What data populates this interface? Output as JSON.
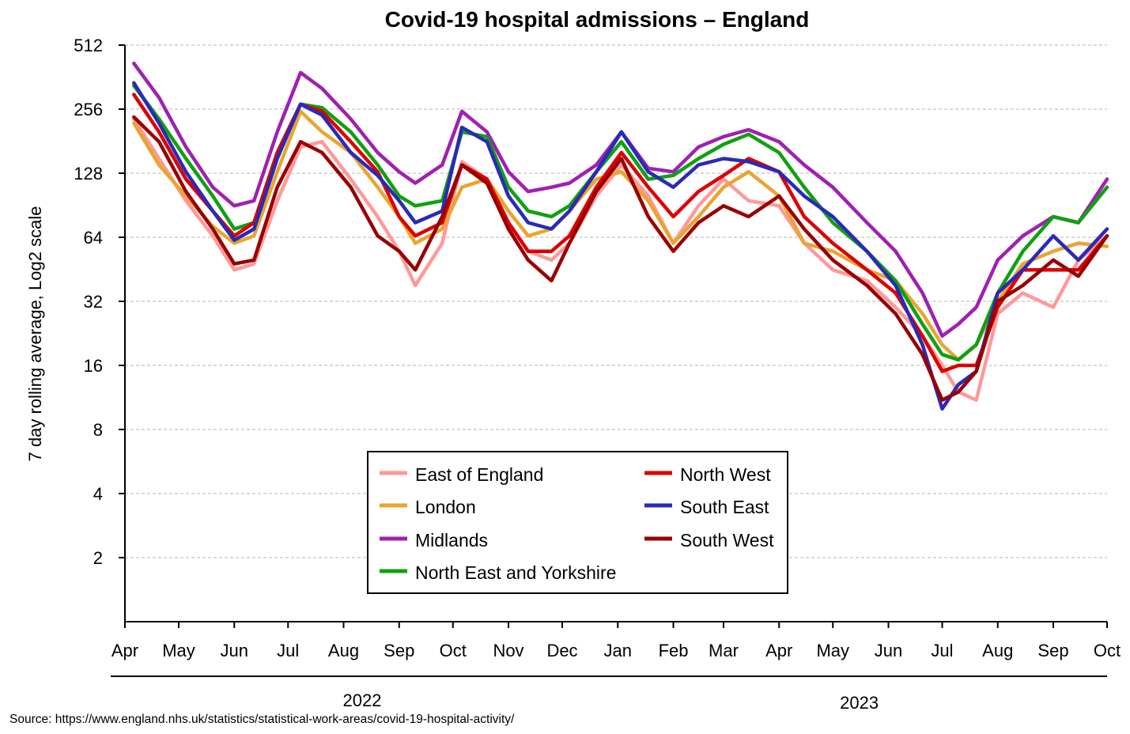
{
  "chart_data": {
    "type": "line",
    "title": "Covid-19 hospital admissions – England",
    "xlabel": "",
    "ylabel": "7 day rolling average, Log2 scale",
    "y_scale": "log2",
    "ylim": [
      1,
      512
    ],
    "y_ticks": [
      512,
      256,
      128,
      64,
      32,
      16,
      8,
      4,
      2
    ],
    "x_range": [
      "2022-04-01",
      "2023-10-01"
    ],
    "x_ticks": [
      {
        "date": "2022-04-01",
        "label": "Apr"
      },
      {
        "date": "2022-05-01",
        "label": "May"
      },
      {
        "date": "2022-06-01",
        "label": "Jun"
      },
      {
        "date": "2022-07-01",
        "label": "Jul"
      },
      {
        "date": "2022-08-01",
        "label": "Aug"
      },
      {
        "date": "2022-09-01",
        "label": "Sep"
      },
      {
        "date": "2022-10-01",
        "label": "Oct"
      },
      {
        "date": "2022-11-01",
        "label": "Nov"
      },
      {
        "date": "2022-12-01",
        "label": "Dec"
      },
      {
        "date": "2023-01-01",
        "label": "Jan"
      },
      {
        "date": "2023-02-01",
        "label": "Feb"
      },
      {
        "date": "2023-03-01",
        "label": "Mar"
      },
      {
        "date": "2023-04-01",
        "label": "Apr"
      },
      {
        "date": "2023-05-01",
        "label": "May"
      },
      {
        "date": "2023-06-01",
        "label": "Jun"
      },
      {
        "date": "2023-07-01",
        "label": "Jul"
      },
      {
        "date": "2023-08-01",
        "label": "Aug"
      },
      {
        "date": "2023-09-01",
        "label": "Sep"
      },
      {
        "date": "2023-10-01",
        "label": "Oct"
      }
    ],
    "year_labels": [
      {
        "label": "2022",
        "from": "2022-04-01",
        "to": "2022-12-31"
      },
      {
        "label": "2023",
        "from": "2023-01-01",
        "to": "2023-10-01"
      }
    ],
    "grid": "horizontal dashed",
    "legend_position": "lower-center",
    "series": [
      {
        "name": "East of England",
        "color": "#ff9999",
        "x": [
          "2022-04-06",
          "2022-04-20",
          "2022-05-05",
          "2022-05-20",
          "2022-06-01",
          "2022-06-12",
          "2022-06-25",
          "2022-07-08",
          "2022-07-20",
          "2022-08-05",
          "2022-08-20",
          "2022-09-01",
          "2022-09-10",
          "2022-09-25",
          "2022-10-06",
          "2022-10-20",
          "2022-11-01",
          "2022-11-12",
          "2022-11-25",
          "2022-12-05",
          "2022-12-20",
          "2023-01-03",
          "2023-01-18",
          "2023-02-01",
          "2023-02-15",
          "2023-03-01",
          "2023-03-15",
          "2023-04-01",
          "2023-04-15",
          "2023-05-01",
          "2023-05-20",
          "2023-06-05",
          "2023-06-20",
          "2023-07-01",
          "2023-07-10",
          "2023-07-20",
          "2023-08-01",
          "2023-08-15",
          "2023-09-01",
          "2023-09-15",
          "2023-10-01"
        ],
        "values": [
          230,
          150,
          95,
          65,
          45,
          48,
          95,
          170,
          180,
          120,
          80,
          55,
          38,
          60,
          145,
          120,
          75,
          55,
          50,
          60,
          100,
          140,
          100,
          60,
          90,
          120,
          95,
          90,
          60,
          45,
          40,
          30,
          22,
          16,
          12,
          11,
          28,
          35,
          30,
          50,
          65
        ]
      },
      {
        "name": "London",
        "color": "#e8a530",
        "x": [
          "2022-04-06",
          "2022-04-20",
          "2022-05-05",
          "2022-05-20",
          "2022-06-01",
          "2022-06-12",
          "2022-06-25",
          "2022-07-08",
          "2022-07-20",
          "2022-08-05",
          "2022-08-20",
          "2022-09-01",
          "2022-09-10",
          "2022-09-25",
          "2022-10-06",
          "2022-10-20",
          "2022-11-01",
          "2022-11-12",
          "2022-11-25",
          "2022-12-05",
          "2022-12-20",
          "2023-01-03",
          "2023-01-18",
          "2023-02-01",
          "2023-02-15",
          "2023-03-01",
          "2023-03-15",
          "2023-04-01",
          "2023-04-15",
          "2023-05-01",
          "2023-05-20",
          "2023-06-05",
          "2023-06-20",
          "2023-07-01",
          "2023-07-10",
          "2023-07-20",
          "2023-08-01",
          "2023-08-15",
          "2023-09-01",
          "2023-09-15",
          "2023-10-01"
        ],
        "values": [
          220,
          140,
          100,
          72,
          60,
          65,
          130,
          250,
          200,
          160,
          110,
          80,
          60,
          70,
          110,
          120,
          85,
          65,
          70,
          85,
          120,
          130,
          95,
          60,
          80,
          110,
          130,
          100,
          60,
          55,
          45,
          40,
          28,
          20,
          17,
          20,
          32,
          48,
          55,
          60,
          58
        ]
      },
      {
        "name": "Midlands",
        "color": "#a020b0",
        "x": [
          "2022-04-06",
          "2022-04-20",
          "2022-05-05",
          "2022-05-20",
          "2022-06-01",
          "2022-06-12",
          "2022-06-25",
          "2022-07-08",
          "2022-07-20",
          "2022-08-05",
          "2022-08-20",
          "2022-09-01",
          "2022-09-10",
          "2022-09-25",
          "2022-10-06",
          "2022-10-20",
          "2022-11-01",
          "2022-11-12",
          "2022-11-25",
          "2022-12-05",
          "2022-12-20",
          "2023-01-03",
          "2023-01-18",
          "2023-02-01",
          "2023-02-15",
          "2023-03-01",
          "2023-03-15",
          "2023-04-01",
          "2023-04-15",
          "2023-05-01",
          "2023-05-20",
          "2023-06-05",
          "2023-06-20",
          "2023-07-01",
          "2023-07-10",
          "2023-07-20",
          "2023-08-01",
          "2023-08-15",
          "2023-09-01",
          "2023-09-15",
          "2023-10-01"
        ],
        "values": [
          420,
          290,
          170,
          110,
          90,
          95,
          200,
          380,
          320,
          230,
          160,
          130,
          115,
          140,
          250,
          200,
          130,
          105,
          110,
          115,
          140,
          200,
          135,
          130,
          170,
          190,
          205,
          180,
          140,
          110,
          75,
          55,
          35,
          22,
          25,
          30,
          50,
          65,
          80,
          75,
          120
        ]
      },
      {
        "name": "North East and Yorkshire",
        "color": "#10a010",
        "x": [
          "2022-04-06",
          "2022-04-20",
          "2022-05-05",
          "2022-05-20",
          "2022-06-01",
          "2022-06-12",
          "2022-06-25",
          "2022-07-08",
          "2022-07-20",
          "2022-08-05",
          "2022-08-20",
          "2022-09-01",
          "2022-09-10",
          "2022-09-25",
          "2022-10-06",
          "2022-10-20",
          "2022-11-01",
          "2022-11-12",
          "2022-11-25",
          "2022-12-05",
          "2022-12-20",
          "2023-01-03",
          "2023-01-18",
          "2023-02-01",
          "2023-02-15",
          "2023-03-01",
          "2023-03-15",
          "2023-04-01",
          "2023-04-15",
          "2023-05-01",
          "2023-05-20",
          "2023-06-05",
          "2023-06-20",
          "2023-07-01",
          "2023-07-10",
          "2023-07-20",
          "2023-08-01",
          "2023-08-15",
          "2023-09-01",
          "2023-09-15",
          "2023-10-01"
        ],
        "values": [
          330,
          230,
          150,
          100,
          70,
          75,
          160,
          270,
          260,
          200,
          140,
          100,
          90,
          95,
          200,
          190,
          110,
          85,
          80,
          90,
          130,
          180,
          120,
          125,
          150,
          175,
          195,
          160,
          110,
          75,
          55,
          40,
          25,
          18,
          17,
          20,
          35,
          55,
          80,
          75,
          110
        ]
      },
      {
        "name": "North West",
        "color": "#dd0000",
        "x": [
          "2022-04-06",
          "2022-04-20",
          "2022-05-05",
          "2022-05-20",
          "2022-06-01",
          "2022-06-12",
          "2022-06-25",
          "2022-07-08",
          "2022-07-20",
          "2022-08-05",
          "2022-08-20",
          "2022-09-01",
          "2022-09-10",
          "2022-09-25",
          "2022-10-06",
          "2022-10-20",
          "2022-11-01",
          "2022-11-12",
          "2022-11-25",
          "2022-12-05",
          "2022-12-20",
          "2023-01-03",
          "2023-01-18",
          "2023-02-01",
          "2023-02-15",
          "2023-03-01",
          "2023-03-15",
          "2023-04-01",
          "2023-04-15",
          "2023-05-01",
          "2023-05-20",
          "2023-06-05",
          "2023-06-20",
          "2023-07-01",
          "2023-07-10",
          "2023-07-20",
          "2023-08-01",
          "2023-08-15",
          "2023-09-01",
          "2023-09-15",
          "2023-10-01"
        ],
        "values": [
          300,
          200,
          120,
          85,
          65,
          75,
          160,
          270,
          250,
          180,
          130,
          80,
          65,
          75,
          140,
          120,
          75,
          55,
          55,
          65,
          110,
          160,
          110,
          80,
          105,
          125,
          150,
          130,
          80,
          60,
          45,
          35,
          22,
          15,
          16,
          16,
          30,
          45,
          45,
          45,
          65
        ]
      },
      {
        "name": "South East",
        "color": "#2a2ab8",
        "x": [
          "2022-04-06",
          "2022-04-20",
          "2022-05-05",
          "2022-05-20",
          "2022-06-01",
          "2022-06-12",
          "2022-06-25",
          "2022-07-08",
          "2022-07-20",
          "2022-08-05",
          "2022-08-20",
          "2022-09-01",
          "2022-09-10",
          "2022-09-25",
          "2022-10-06",
          "2022-10-20",
          "2022-11-01",
          "2022-11-12",
          "2022-11-25",
          "2022-12-05",
          "2022-12-20",
          "2023-01-03",
          "2023-01-18",
          "2023-02-01",
          "2023-02-15",
          "2023-03-01",
          "2023-03-15",
          "2023-04-01",
          "2023-04-15",
          "2023-05-01",
          "2023-05-20",
          "2023-06-05",
          "2023-06-20",
          "2023-07-01",
          "2023-07-10",
          "2023-07-20",
          "2023-08-01",
          "2023-08-15",
          "2023-09-01",
          "2023-09-15",
          "2023-10-01"
        ],
        "values": [
          340,
          220,
          130,
          85,
          62,
          70,
          150,
          270,
          240,
          160,
          125,
          95,
          75,
          85,
          210,
          180,
          100,
          75,
          70,
          85,
          130,
          200,
          130,
          110,
          140,
          150,
          145,
          130,
          100,
          80,
          55,
          38,
          20,
          10,
          13,
          15,
          35,
          45,
          65,
          50,
          70
        ]
      },
      {
        "name": "South West",
        "color": "#990000",
        "x": [
          "2022-04-06",
          "2022-04-20",
          "2022-05-05",
          "2022-05-20",
          "2022-06-01",
          "2022-06-12",
          "2022-06-25",
          "2022-07-08",
          "2022-07-20",
          "2022-08-05",
          "2022-08-20",
          "2022-09-01",
          "2022-09-10",
          "2022-09-25",
          "2022-10-06",
          "2022-10-20",
          "2022-11-01",
          "2022-11-12",
          "2022-11-25",
          "2022-12-05",
          "2022-12-20",
          "2023-01-03",
          "2023-01-18",
          "2023-02-01",
          "2023-02-15",
          "2023-03-01",
          "2023-03-15",
          "2023-04-01",
          "2023-04-15",
          "2023-05-01",
          "2023-05-20",
          "2023-06-05",
          "2023-06-20",
          "2023-07-01",
          "2023-07-10",
          "2023-07-20",
          "2023-08-01",
          "2023-08-15",
          "2023-09-01",
          "2023-09-15",
          "2023-10-01"
        ],
        "values": [
          235,
          180,
          105,
          70,
          48,
          50,
          110,
          180,
          160,
          110,
          65,
          55,
          45,
          80,
          140,
          115,
          70,
          50,
          40,
          60,
          105,
          150,
          80,
          55,
          75,
          90,
          80,
          100,
          70,
          50,
          38,
          28,
          18,
          11,
          12,
          15,
          32,
          38,
          50,
          42,
          65
        ]
      }
    ]
  },
  "source": "Source: https://www.england.nhs.uk/statistics/statistical-work-areas/covid-19-hospital-activity/"
}
